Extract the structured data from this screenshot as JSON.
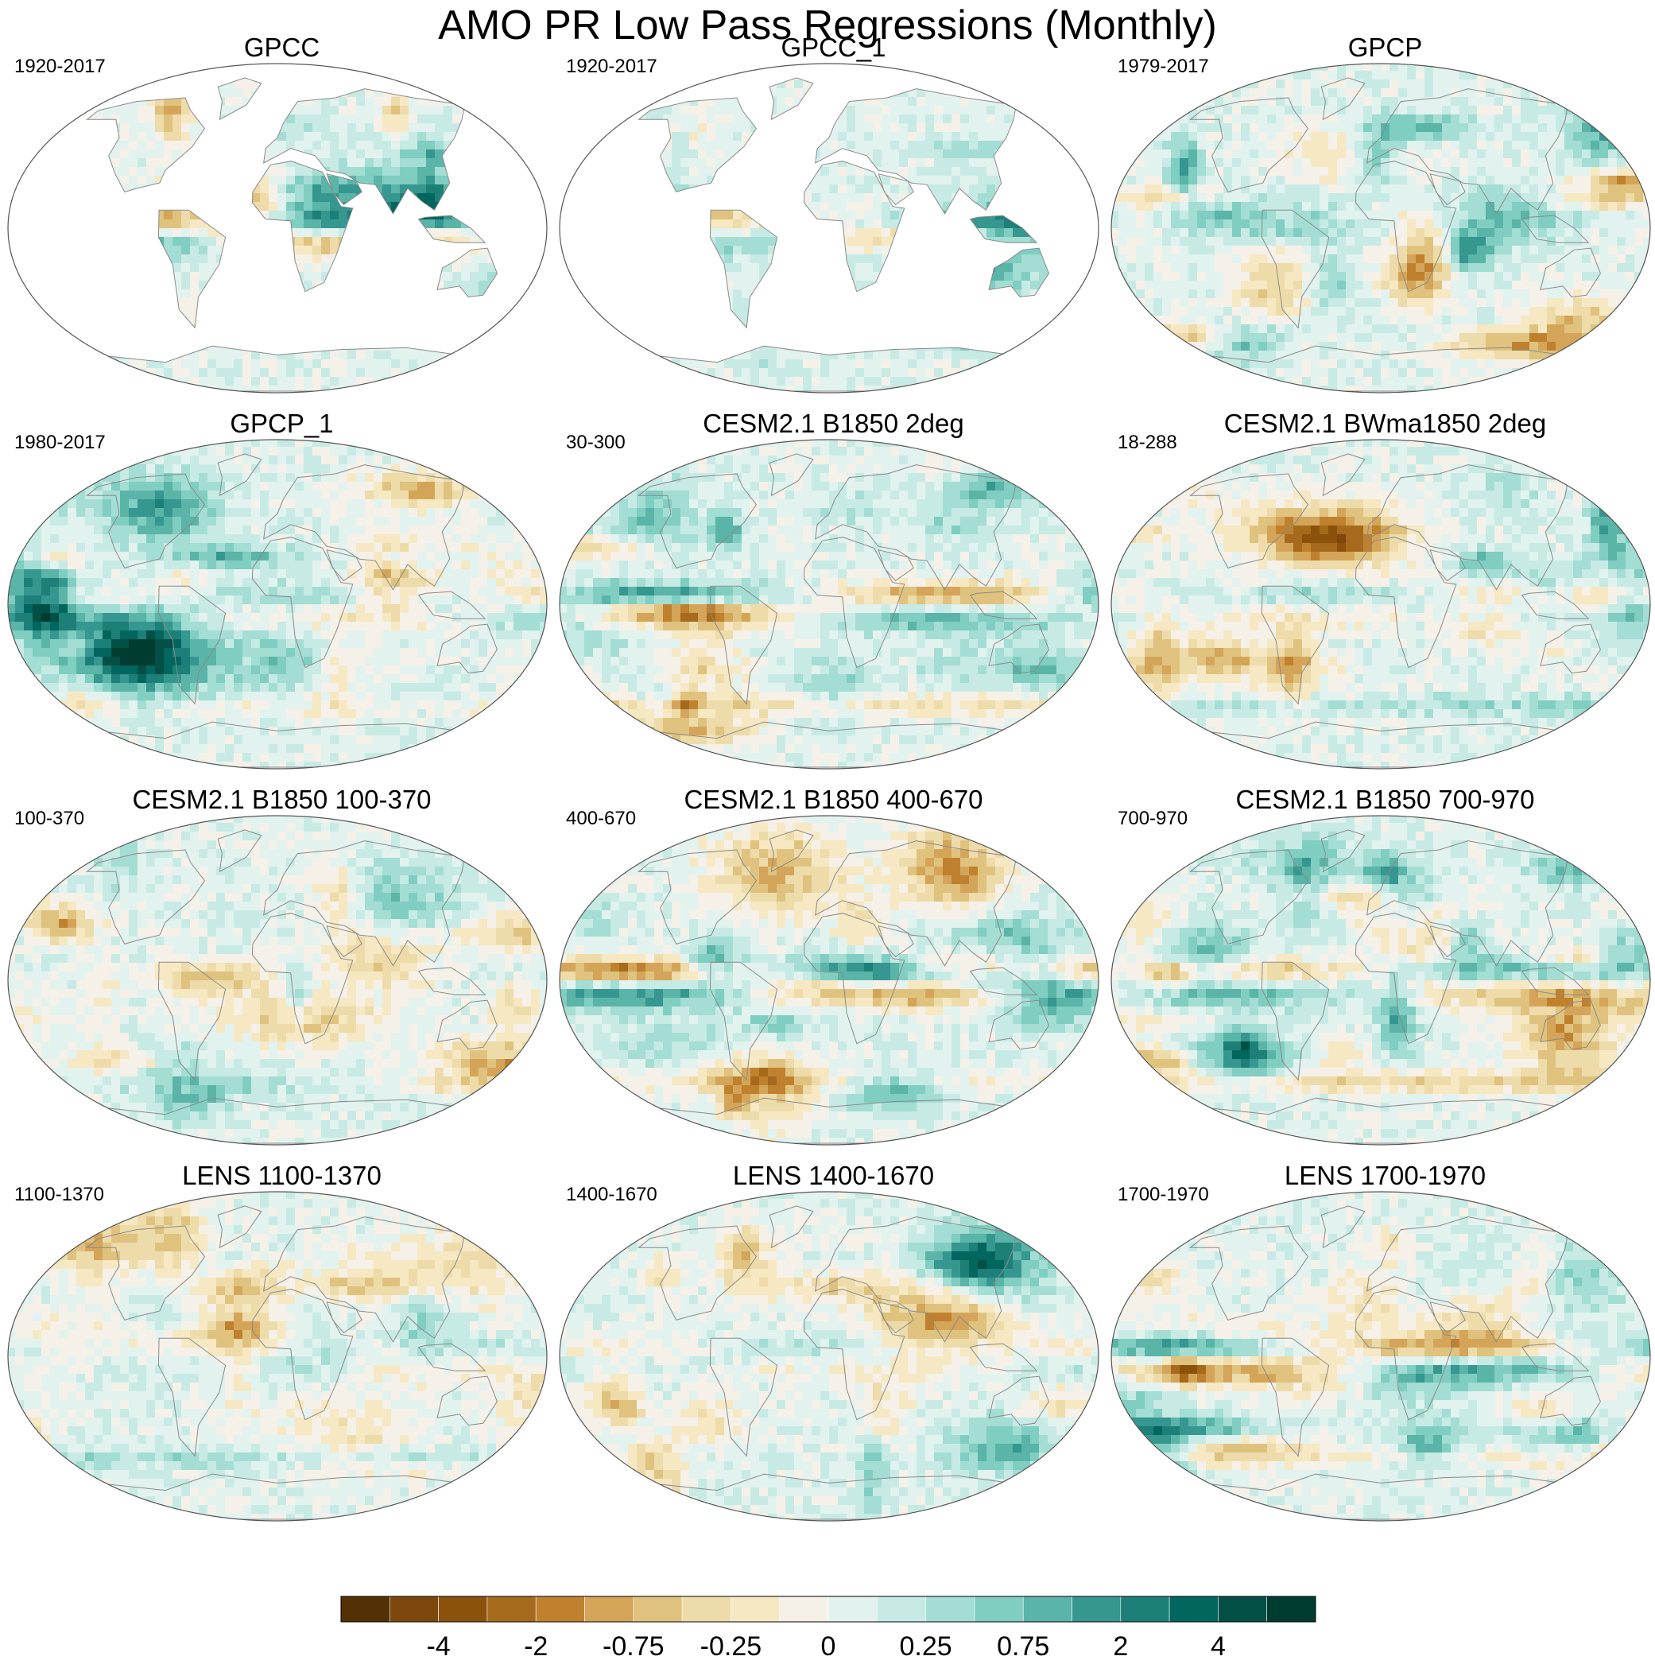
{
  "title": "AMO PR Low Pass Regressions (Monthly)",
  "colors": {
    "palette": [
      "#543005",
      "#7d470c",
      "#8c510a",
      "#a66a1d",
      "#bf812d",
      "#d4a558",
      "#dfc27d",
      "#eedbaa",
      "#f6e8c3",
      "#f5f1e8",
      "#e2f2ef",
      "#c7eae5",
      "#a3ddd3",
      "#80cdc1",
      "#5ab4a7",
      "#35978f",
      "#1c8078",
      "#01665e",
      "#024f46",
      "#003c30"
    ],
    "land_outline": "#8a8a8a",
    "ocean_blank": "#ffffff"
  },
  "colorbar": {
    "labels": [
      "-4",
      "-2",
      "-0.75",
      "-0.25",
      "0",
      "0.25",
      "0.75",
      "2",
      "4"
    ]
  },
  "panels": [
    {
      "title": "GPCC",
      "years": "1920-2017",
      "type": "land",
      "seed": 11
    },
    {
      "title": "GPCC_1",
      "years": "1920-2017",
      "type": "land",
      "seed": 12
    },
    {
      "title": "GPCP",
      "years": "1979-2017",
      "type": "global",
      "seed": 13
    },
    {
      "title": "GPCP_1",
      "years": "1980-2017",
      "type": "global",
      "seed": 14
    },
    {
      "title": "CESM2.1 B1850 2deg",
      "years": "30-300",
      "type": "global",
      "seed": 15
    },
    {
      "title": "CESM2.1 BWma1850 2deg",
      "years": "18-288",
      "type": "global",
      "seed": 16
    },
    {
      "title": "CESM2.1 B1850 100-370",
      "years": "100-370",
      "type": "global",
      "seed": 17
    },
    {
      "title": "CESM2.1 B1850 400-670",
      "years": "400-670",
      "type": "global",
      "seed": 18
    },
    {
      "title": "CESM2.1 B1850 700-970",
      "years": "700-970",
      "type": "global",
      "seed": 19
    },
    {
      "title": "LENS 1100-1370",
      "years": "1100-1370",
      "type": "global",
      "seed": 20
    },
    {
      "title": "LENS 1400-1670",
      "years": "1400-1670",
      "type": "global",
      "seed": 21
    },
    {
      "title": "LENS 1700-1970",
      "years": "1700-1970",
      "type": "global",
      "seed": 22
    }
  ]
}
